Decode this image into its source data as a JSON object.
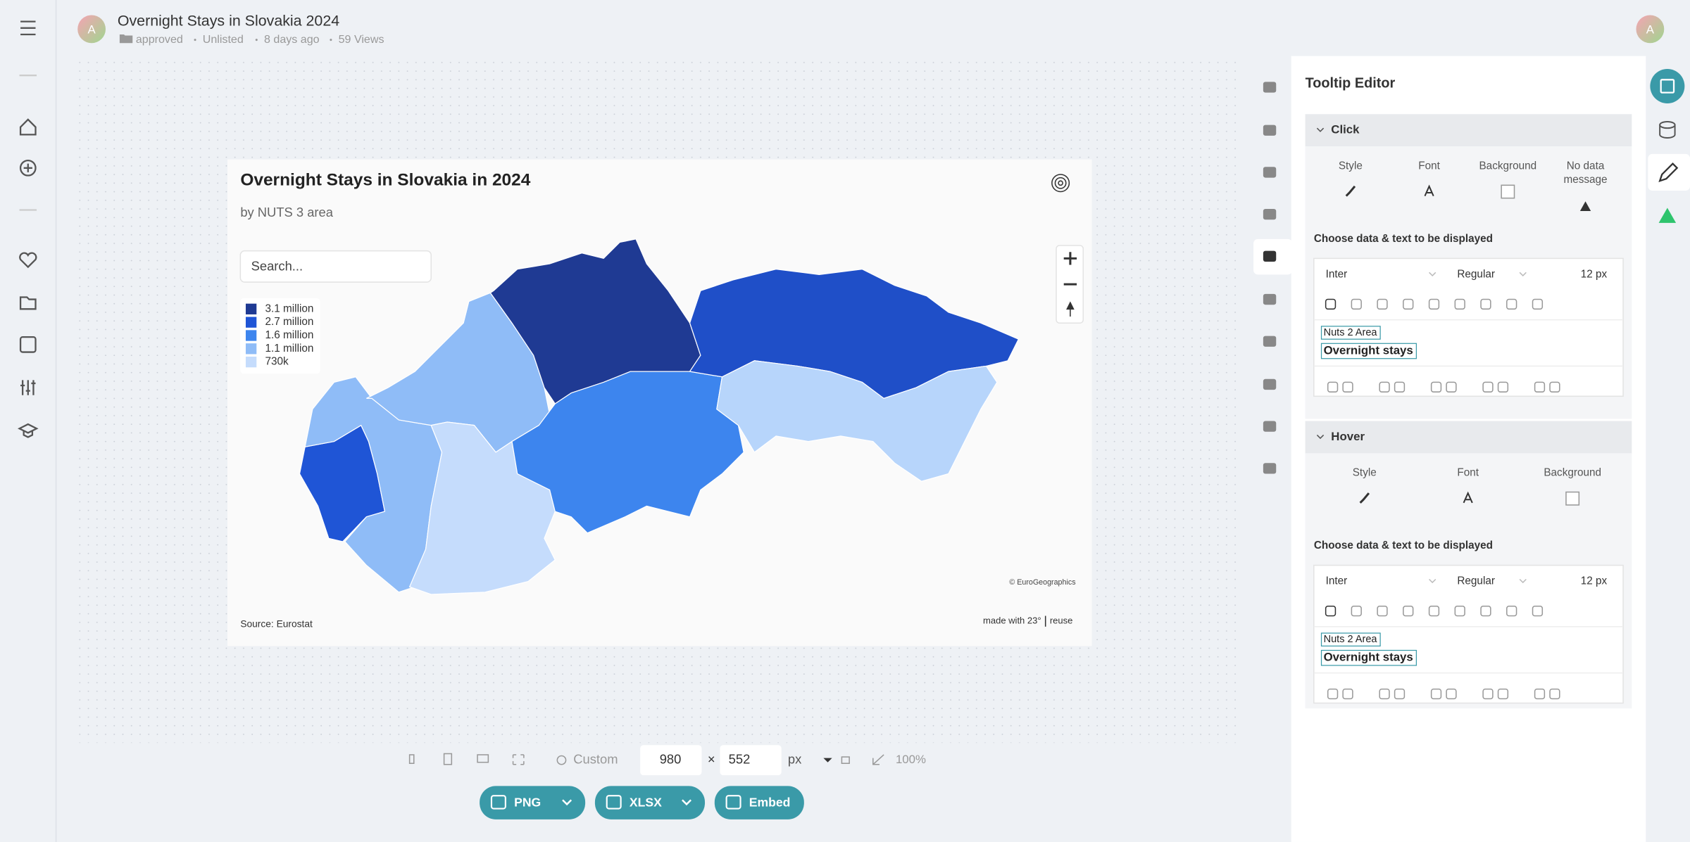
{
  "header": {
    "avatar": "A",
    "title": "Overnight Stays in Slovakia 2024",
    "status": "approved",
    "visibility": "Unlisted",
    "updated": "8 days ago",
    "views": "59 Views",
    "user_avatar": "A"
  },
  "chart": {
    "title": "Overnight Stays in Slovakia in 2024",
    "subtitle": "by NUTS 3 area",
    "search_placeholder": "Search...",
    "legend": [
      "3.1 million",
      "2.7 million",
      "1.6 million",
      "1.1 million",
      "730k"
    ],
    "attribution": "© EuroGeographics",
    "source": "Source: Eurostat",
    "made_with": "made with 23°",
    "reuse": "reuse"
  },
  "size_bar": {
    "preset": "Custom",
    "width": 980,
    "times": "×",
    "height": 552,
    "unit": "px",
    "zoom": "100%"
  },
  "export_buttons": [
    "PNG",
    "XLSX",
    "Embed"
  ],
  "tooltip_editor": {
    "title": "Tooltip Editor",
    "sections": [
      {
        "name": "Click",
        "options": [
          "Style",
          "Font",
          "Background",
          "No data message"
        ],
        "prompt": "Choose data & text to be displayed",
        "font": "Inter",
        "weight": "Regular",
        "size": "12 px",
        "fields": [
          "Nuts 2 Area",
          "Overnight stays"
        ]
      },
      {
        "name": "Hover",
        "options": [
          "Style",
          "Font",
          "Background"
        ],
        "prompt": "Choose data & text to be displayed",
        "font": "Inter",
        "weight": "Regular",
        "size": "12 px",
        "fields": [
          "Nuts 2 Area",
          "Overnight stays"
        ]
      }
    ]
  }
}
